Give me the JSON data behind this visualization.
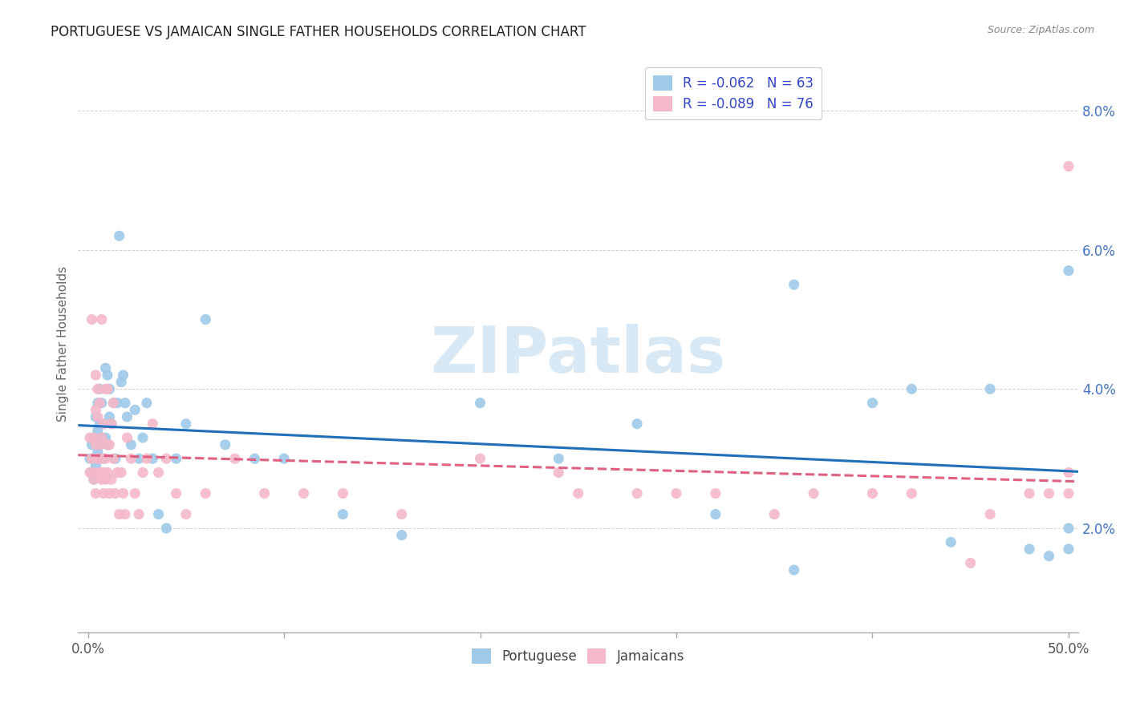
{
  "title": "PORTUGUESE VS JAMAICAN SINGLE FATHER HOUSEHOLDS CORRELATION CHART",
  "source": "Source: ZipAtlas.com",
  "ylabel": "Single Father Households",
  "xlim": [
    -0.005,
    0.505
  ],
  "ylim": [
    0.005,
    0.088
  ],
  "xtick_positions": [
    0.0,
    0.1,
    0.2,
    0.3,
    0.4,
    0.5
  ],
  "xtick_labels_ends": [
    "0.0%",
    "50.0%"
  ],
  "ytick_positions": [
    0.02,
    0.04,
    0.06,
    0.08
  ],
  "ytick_labels": [
    "2.0%",
    "4.0%",
    "6.0%",
    "8.0%"
  ],
  "portuguese_color": "#9ec9e8",
  "jamaican_color": "#f4b8c8",
  "portuguese_line_color": "#1f6fbd",
  "jamaican_line_color": "#e06080",
  "watermark_text": "ZIPatlas",
  "watermark_color": "#d8e8f4",
  "legend_label_portuguese": "R = -0.062   N = 63",
  "legend_label_jamaican": "R = -0.089   N = 76",
  "bottom_legend_portuguese": "Portuguese",
  "bottom_legend_jamaican": "Jamaicans",
  "portuguese_x": [
    0.001,
    0.002,
    0.002,
    0.003,
    0.003,
    0.004,
    0.004,
    0.005,
    0.005,
    0.005,
    0.006,
    0.006,
    0.006,
    0.007,
    0.007,
    0.008,
    0.008,
    0.009,
    0.009,
    0.01,
    0.01,
    0.011,
    0.011,
    0.012,
    0.013,
    0.014,
    0.015,
    0.016,
    0.017,
    0.018,
    0.019,
    0.02,
    0.022,
    0.024,
    0.026,
    0.028,
    0.03,
    0.033,
    0.036,
    0.04,
    0.045,
    0.05,
    0.06,
    0.07,
    0.085,
    0.1,
    0.13,
    0.16,
    0.2,
    0.24,
    0.28,
    0.32,
    0.36,
    0.4,
    0.44,
    0.48,
    0.5,
    0.36,
    0.42,
    0.46,
    0.49,
    0.5,
    0.5
  ],
  "portuguese_y": [
    0.03,
    0.028,
    0.032,
    0.027,
    0.033,
    0.029,
    0.036,
    0.031,
    0.034,
    0.038,
    0.032,
    0.035,
    0.04,
    0.033,
    0.038,
    0.03,
    0.035,
    0.033,
    0.043,
    0.032,
    0.042,
    0.036,
    0.04,
    0.035,
    0.038,
    0.03,
    0.038,
    0.062,
    0.041,
    0.042,
    0.038,
    0.036,
    0.032,
    0.037,
    0.03,
    0.033,
    0.038,
    0.03,
    0.022,
    0.02,
    0.03,
    0.035,
    0.05,
    0.032,
    0.03,
    0.03,
    0.022,
    0.019,
    0.038,
    0.03,
    0.035,
    0.022,
    0.055,
    0.038,
    0.018,
    0.017,
    0.02,
    0.014,
    0.04,
    0.04,
    0.016,
    0.057,
    0.017
  ],
  "jamaican_x": [
    0.001,
    0.001,
    0.002,
    0.002,
    0.003,
    0.003,
    0.003,
    0.004,
    0.004,
    0.004,
    0.004,
    0.005,
    0.005,
    0.005,
    0.006,
    0.006,
    0.006,
    0.007,
    0.007,
    0.007,
    0.007,
    0.008,
    0.008,
    0.008,
    0.009,
    0.009,
    0.009,
    0.01,
    0.01,
    0.01,
    0.011,
    0.011,
    0.012,
    0.012,
    0.013,
    0.013,
    0.014,
    0.015,
    0.016,
    0.017,
    0.018,
    0.019,
    0.02,
    0.022,
    0.024,
    0.026,
    0.028,
    0.03,
    0.033,
    0.036,
    0.04,
    0.045,
    0.05,
    0.06,
    0.075,
    0.09,
    0.11,
    0.13,
    0.16,
    0.2,
    0.25,
    0.3,
    0.35,
    0.4,
    0.45,
    0.48,
    0.5,
    0.24,
    0.28,
    0.32,
    0.37,
    0.42,
    0.46,
    0.49,
    0.5,
    0.5
  ],
  "jamaican_y": [
    0.028,
    0.033,
    0.03,
    0.05,
    0.027,
    0.028,
    0.033,
    0.025,
    0.032,
    0.037,
    0.042,
    0.03,
    0.036,
    0.04,
    0.028,
    0.032,
    0.038,
    0.027,
    0.03,
    0.033,
    0.05,
    0.025,
    0.028,
    0.035,
    0.03,
    0.027,
    0.04,
    0.028,
    0.032,
    0.04,
    0.025,
    0.032,
    0.027,
    0.035,
    0.03,
    0.038,
    0.025,
    0.028,
    0.022,
    0.028,
    0.025,
    0.022,
    0.033,
    0.03,
    0.025,
    0.022,
    0.028,
    0.03,
    0.035,
    0.028,
    0.03,
    0.025,
    0.022,
    0.025,
    0.03,
    0.025,
    0.025,
    0.025,
    0.022,
    0.03,
    0.025,
    0.025,
    0.022,
    0.025,
    0.015,
    0.025,
    0.025,
    0.028,
    0.025,
    0.025,
    0.025,
    0.025,
    0.022,
    0.025,
    0.028,
    0.072
  ]
}
